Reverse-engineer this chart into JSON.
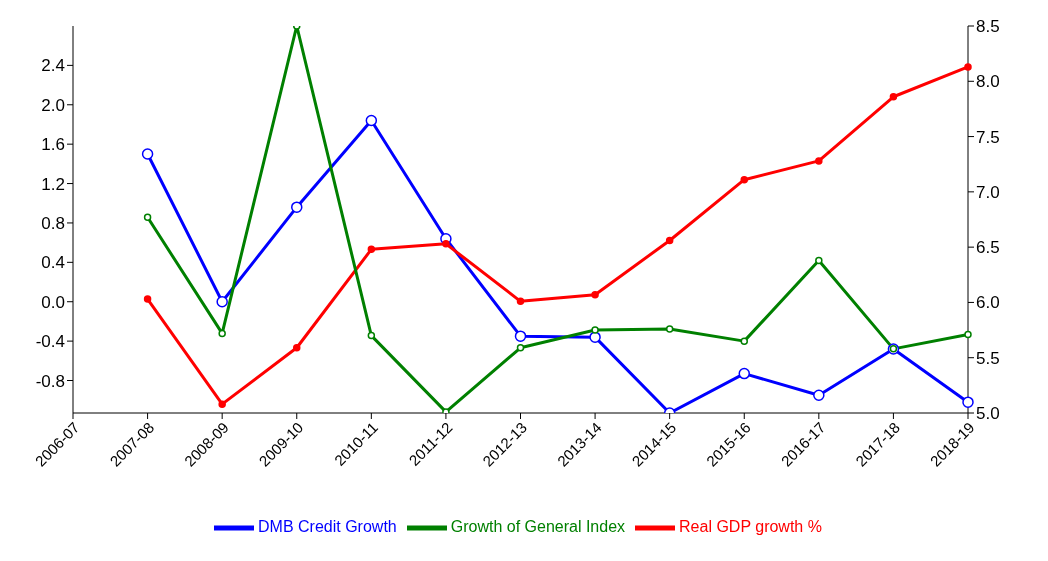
{
  "chart_data": {
    "type": "line",
    "categories": [
      "2006-07",
      "2007-08",
      "2008-09",
      "2009-10",
      "2010-11",
      "2011-12",
      "2012-13",
      "2013-14",
      "2014-15",
      "2015-16",
      "2016-17",
      "2017-18",
      "2018-19"
    ],
    "series": [
      {
        "name": "DMB Credit Growth",
        "color": "#0000ff",
        "axis": "y",
        "values": [
          null,
          1.5,
          0.0,
          0.96,
          1.84,
          0.64,
          -0.35,
          -0.36,
          -1.13,
          -0.73,
          -0.95,
          -0.48,
          -1.02
        ]
      },
      {
        "name": "Real GDP growth %",
        "color": "#ff0000",
        "axis": "y2",
        "values": [
          null,
          6.03,
          5.08,
          5.59,
          6.48,
          6.53,
          6.01,
          6.07,
          6.56,
          7.11,
          7.28,
          7.86,
          8.13
        ]
      },
      {
        "name": "Growth of General Index",
        "color": "#008000",
        "axis": "y2",
        "values": [
          null,
          6.77,
          5.72,
          8.5,
          5.7,
          5.01,
          5.59,
          5.75,
          5.76,
          5.65,
          6.38,
          5.58,
          5.71
        ]
      }
    ],
    "ylim": [
      -1.13,
      2.8
    ],
    "yticks": [
      -0.8,
      -0.4,
      {
        "value": 0,
        "label": "0.0"
      },
      0.4,
      0.8,
      1.2,
      1.6,
      {
        "value": 2,
        "label": "2.0"
      },
      2.4
    ],
    "y2lim": [
      5.0,
      8.5
    ],
    "y2ticks": [
      {
        "value": 5,
        "label": "5.0"
      },
      5.5,
      {
        "value": 6,
        "label": "6.0"
      },
      6.5,
      {
        "value": 7,
        "label": "7.0"
      },
      7.5,
      {
        "value": 8,
        "label": "8.0"
      },
      8.5
    ],
    "marker": "circle",
    "line_style": "solid",
    "legend": "bottom",
    "grid": false
  }
}
